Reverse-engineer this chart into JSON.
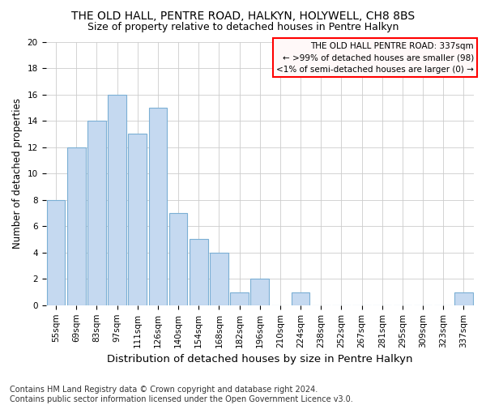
{
  "title": "THE OLD HALL, PENTRE ROAD, HALKYN, HOLYWELL, CH8 8BS",
  "subtitle": "Size of property relative to detached houses in Pentre Halkyn",
  "xlabel": "Distribution of detached houses by size in Pentre Halkyn",
  "ylabel": "Number of detached properties",
  "categories": [
    "55sqm",
    "69sqm",
    "83sqm",
    "97sqm",
    "111sqm",
    "126sqm",
    "140sqm",
    "154sqm",
    "168sqm",
    "182sqm",
    "196sqm",
    "210sqm",
    "224sqm",
    "238sqm",
    "252sqm",
    "267sqm",
    "281sqm",
    "295sqm",
    "309sqm",
    "323sqm",
    "337sqm"
  ],
  "values": [
    8,
    12,
    14,
    16,
    13,
    15,
    7,
    5,
    4,
    1,
    2,
    0,
    1,
    0,
    0,
    0,
    0,
    0,
    0,
    0,
    1
  ],
  "bar_color": "#c5d9f0",
  "bar_edge_color": "#7bafd4",
  "ylim": [
    0,
    20
  ],
  "yticks": [
    0,
    2,
    4,
    6,
    8,
    10,
    12,
    14,
    16,
    18,
    20
  ],
  "annotation_line1": "THE OLD HALL PENTRE ROAD: 337sqm",
  "annotation_line2": "← >99% of detached houses are smaller (98)",
  "annotation_line3": "<1% of semi-detached houses are larger (0) →",
  "annotation_box_facecolor": "#fff8f8",
  "annotation_box_edge_color": "red",
  "footer_line1": "Contains HM Land Registry data © Crown copyright and database right 2024.",
  "footer_line2": "Contains public sector information licensed under the Open Government Licence v3.0.",
  "background_color": "#ffffff",
  "grid_color": "#cccccc",
  "title_fontsize": 10,
  "subtitle_fontsize": 9,
  "xlabel_fontsize": 9.5,
  "ylabel_fontsize": 8.5,
  "tick_fontsize": 7.5,
  "annotation_fontsize": 7.5,
  "footer_fontsize": 7
}
